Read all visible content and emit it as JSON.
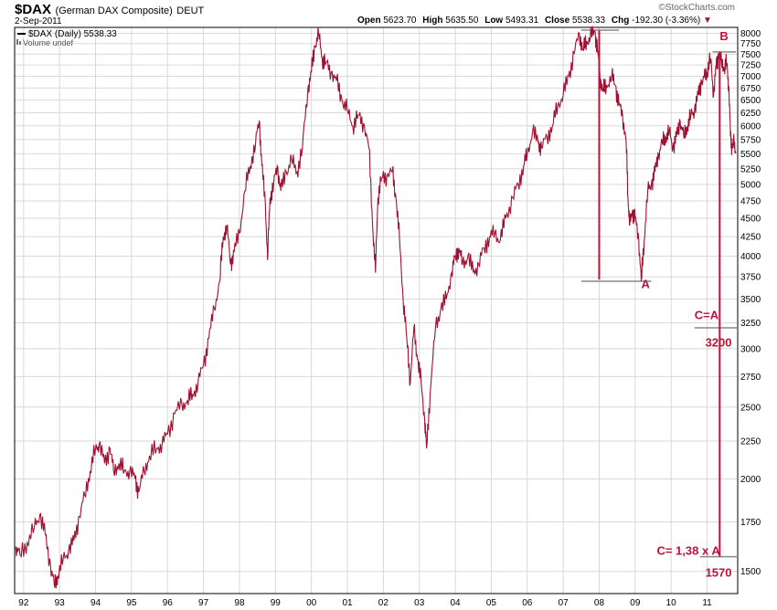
{
  "header": {
    "symbol": "$DAX",
    "name": "(German DAX Composite)",
    "exchange": "DEUT",
    "date": "2-Sep-2011",
    "watermark": "©StockCharts.com",
    "open_label": "Open",
    "open": "5623.70",
    "high_label": "High",
    "high": "5635.50",
    "low_label": "Low",
    "low": "5493.31",
    "close_label": "Close",
    "close": "5538.33",
    "chg_label": "Chg",
    "chg": "-192.30 (-3.36%)"
  },
  "legend": {
    "series_label": "$DAX (Daily) 5538.33",
    "volume_label": "Volume undef"
  },
  "colors": {
    "series": "#a01030",
    "annotation": "#c0103a",
    "grid": "#d8d8d8",
    "level_line": "#888888",
    "text": "#000000"
  },
  "chart_data": {
    "type": "line",
    "scale": "log",
    "ylim": [
      1400,
      8150
    ],
    "xlim": [
      1991.75,
      2011.85
    ],
    "y_ticks": [
      1500,
      1750,
      2000,
      2250,
      2500,
      2750,
      3000,
      3250,
      3500,
      3750,
      4000,
      4250,
      4500,
      4750,
      5000,
      5250,
      5500,
      5750,
      6000,
      6250,
      6500,
      6750,
      7000,
      7250,
      7500,
      7750,
      8000
    ],
    "x_ticks": [
      {
        "label": "92",
        "x": 1992.0
      },
      {
        "label": "93",
        "x": 1993.0
      },
      {
        "label": "94",
        "x": 1994.0
      },
      {
        "label": "95",
        "x": 1995.0
      },
      {
        "label": "96",
        "x": 1996.0
      },
      {
        "label": "97",
        "x": 1997.0
      },
      {
        "label": "98",
        "x": 1998.0
      },
      {
        "label": "99",
        "x": 1999.0
      },
      {
        "label": "00",
        "x": 2000.0
      },
      {
        "label": "01",
        "x": 2001.0
      },
      {
        "label": "02",
        "x": 2002.0
      },
      {
        "label": "03",
        "x": 2003.0
      },
      {
        "label": "04",
        "x": 2004.0
      },
      {
        "label": "05",
        "x": 2005.0
      },
      {
        "label": "06",
        "x": 2006.0
      },
      {
        "label": "07",
        "x": 2007.0
      },
      {
        "label": "08",
        "x": 2008.0
      },
      {
        "label": "09",
        "x": 2009.0
      },
      {
        "label": "10",
        "x": 2010.0
      },
      {
        "label": "11",
        "x": 2011.0
      }
    ],
    "grid": true,
    "series": [
      {
        "values": [
          [
            1991.78,
            1620
          ],
          [
            1991.9,
            1580
          ],
          [
            1992.1,
            1640
          ],
          [
            1992.3,
            1720
          ],
          [
            1992.45,
            1790
          ],
          [
            1992.6,
            1680
          ],
          [
            1992.75,
            1520
          ],
          [
            1992.85,
            1440
          ],
          [
            1992.95,
            1480
          ],
          [
            1993.1,
            1560
          ],
          [
            1993.25,
            1600
          ],
          [
            1993.4,
            1650
          ],
          [
            1993.55,
            1780
          ],
          [
            1993.7,
            1900
          ],
          [
            1993.85,
            2050
          ],
          [
            1994.0,
            2200
          ],
          [
            1994.1,
            2230
          ],
          [
            1994.25,
            2100
          ],
          [
            1994.4,
            2200
          ],
          [
            1994.5,
            2050
          ],
          [
            1994.65,
            2100
          ],
          [
            1994.8,
            2050
          ],
          [
            1994.95,
            2050
          ],
          [
            1995.1,
            2000
          ],
          [
            1995.2,
            1920
          ],
          [
            1995.35,
            2050
          ],
          [
            1995.5,
            2150
          ],
          [
            1995.7,
            2200
          ],
          [
            1995.85,
            2230
          ],
          [
            1996.0,
            2300
          ],
          [
            1996.2,
            2450
          ],
          [
            1996.4,
            2520
          ],
          [
            1996.55,
            2550
          ],
          [
            1996.7,
            2600
          ],
          [
            1996.85,
            2700
          ],
          [
            1997.0,
            2850
          ],
          [
            1997.15,
            3100
          ],
          [
            1997.3,
            3400
          ],
          [
            1997.45,
            3700
          ],
          [
            1997.55,
            4250
          ],
          [
            1997.65,
            4400
          ],
          [
            1997.75,
            3900
          ],
          [
            1997.85,
            4050
          ],
          [
            1998.0,
            4300
          ],
          [
            1998.15,
            4900
          ],
          [
            1998.3,
            5300
          ],
          [
            1998.45,
            5700
          ],
          [
            1998.55,
            6100
          ],
          [
            1998.62,
            5300
          ],
          [
            1998.72,
            4700
          ],
          [
            1998.78,
            3950
          ],
          [
            1998.85,
            4800
          ],
          [
            1998.95,
            5000
          ],
          [
            1999.05,
            5300
          ],
          [
            1999.15,
            4900
          ],
          [
            1999.3,
            5200
          ],
          [
            1999.45,
            5400
          ],
          [
            1999.6,
            5200
          ],
          [
            1999.75,
            5600
          ],
          [
            1999.9,
            6700
          ],
          [
            2000.0,
            7100
          ],
          [
            2000.1,
            7700
          ],
          [
            2000.2,
            8000
          ],
          [
            2000.3,
            7400
          ],
          [
            2000.4,
            7300
          ],
          [
            2000.55,
            7100
          ],
          [
            2000.7,
            6900
          ],
          [
            2000.85,
            6500
          ],
          [
            2001.0,
            6300
          ],
          [
            2001.15,
            6000
          ],
          [
            2001.3,
            6200
          ],
          [
            2001.45,
            6050
          ],
          [
            2001.6,
            5600
          ],
          [
            2001.7,
            4400
          ],
          [
            2001.78,
            3800
          ],
          [
            2001.85,
            4800
          ],
          [
            2001.95,
            5100
          ],
          [
            2002.1,
            5150
          ],
          [
            2002.25,
            5200
          ],
          [
            2002.35,
            4800
          ],
          [
            2002.45,
            4200
          ],
          [
            2002.55,
            3500
          ],
          [
            2002.65,
            3100
          ],
          [
            2002.75,
            2700
          ],
          [
            2002.85,
            3200
          ],
          [
            2002.95,
            2900
          ],
          [
            2003.05,
            2700
          ],
          [
            2003.15,
            2400
          ],
          [
            2003.2,
            2200
          ],
          [
            2003.3,
            2600
          ],
          [
            2003.45,
            3200
          ],
          [
            2003.6,
            3400
          ],
          [
            2003.75,
            3500
          ],
          [
            2003.9,
            3800
          ],
          [
            2004.0,
            4000
          ],
          [
            2004.1,
            4100
          ],
          [
            2004.2,
            3900
          ],
          [
            2004.35,
            4000
          ],
          [
            2004.5,
            3800
          ],
          [
            2004.65,
            3900
          ],
          [
            2004.8,
            4100
          ],
          [
            2004.95,
            4250
          ],
          [
            2005.1,
            4300
          ],
          [
            2005.25,
            4200
          ],
          [
            2005.4,
            4500
          ],
          [
            2005.6,
            4800
          ],
          [
            2005.75,
            5000
          ],
          [
            2005.9,
            5300
          ],
          [
            2006.0,
            5500
          ],
          [
            2006.15,
            5900
          ],
          [
            2006.3,
            5700
          ],
          [
            2006.4,
            5600
          ],
          [
            2006.55,
            5800
          ],
          [
            2006.7,
            6000
          ],
          [
            2006.85,
            6400
          ],
          [
            2007.0,
            6600
          ],
          [
            2007.15,
            7000
          ],
          [
            2007.3,
            7500
          ],
          [
            2007.45,
            8000
          ],
          [
            2007.55,
            7600
          ],
          [
            2007.65,
            7800
          ],
          [
            2007.75,
            7900
          ],
          [
            2007.88,
            8050
          ],
          [
            2007.95,
            7600
          ],
          [
            2008.02,
            7000
          ],
          [
            2008.1,
            6700
          ],
          [
            2008.2,
            6800
          ],
          [
            2008.35,
            7000
          ],
          [
            2008.45,
            6800
          ],
          [
            2008.55,
            6400
          ],
          [
            2008.65,
            6200
          ],
          [
            2008.75,
            5700
          ],
          [
            2008.8,
            4800
          ],
          [
            2008.85,
            4400
          ],
          [
            2008.92,
            4600
          ],
          [
            2009.0,
            4500
          ],
          [
            2009.1,
            4200
          ],
          [
            2009.17,
            3700
          ],
          [
            2009.25,
            4200
          ],
          [
            2009.35,
            4900
          ],
          [
            2009.45,
            5000
          ],
          [
            2009.55,
            5200
          ],
          [
            2009.65,
            5500
          ],
          [
            2009.75,
            5700
          ],
          [
            2009.85,
            5800
          ],
          [
            2009.95,
            5900
          ],
          [
            2010.05,
            5600
          ],
          [
            2010.15,
            5800
          ],
          [
            2010.25,
            6100
          ],
          [
            2010.35,
            5800
          ],
          [
            2010.45,
            6000
          ],
          [
            2010.55,
            6200
          ],
          [
            2010.65,
            6300
          ],
          [
            2010.75,
            6600
          ],
          [
            2010.85,
            6900
          ],
          [
            2010.95,
            7000
          ],
          [
            2011.0,
            7100
          ],
          [
            2011.1,
            7400
          ],
          [
            2011.18,
            6600
          ],
          [
            2011.25,
            7200
          ],
          [
            2011.32,
            7500
          ],
          [
            2011.4,
            7300
          ],
          [
            2011.48,
            7200
          ],
          [
            2011.55,
            7300
          ],
          [
            2011.6,
            6800
          ],
          [
            2011.65,
            5800
          ],
          [
            2011.7,
            5600
          ],
          [
            2011.75,
            5700
          ],
          [
            2011.8,
            5538
          ]
        ]
      }
    ],
    "annotations": [
      {
        "text": "A",
        "at": [
          2009.17,
          3620
        ]
      },
      {
        "text": "B",
        "at": [
          2011.35,
          7830
        ]
      },
      {
        "text": "C=A",
        "at": [
          2010.65,
          3290
        ]
      },
      {
        "text": "3200",
        "at": [
          2010.95,
          3020
        ]
      },
      {
        "text": "C= 1,38 x A",
        "at": [
          2009.6,
          1580
        ]
      },
      {
        "text": "1570",
        "at": [
          2010.95,
          1475
        ]
      }
    ],
    "levels": [
      {
        "y": 8080,
        "x1": 2007.5,
        "x2": 2008.55
      },
      {
        "y": 3700,
        "x1": 2007.5,
        "x2": 2009.45
      },
      {
        "y": 7550,
        "x1": 2011.15,
        "x2": 2011.8
      },
      {
        "y": 3200,
        "x1": 2010.65,
        "x2": 2011.85
      },
      {
        "y": 1570,
        "x1": 2010.8,
        "x2": 2011.85
      }
    ],
    "verticals": [
      {
        "x": 2008.0,
        "y1": 3720,
        "y2": 8070
      },
      {
        "x": 2011.35,
        "y1": 1570,
        "y2": 7550
      }
    ]
  }
}
